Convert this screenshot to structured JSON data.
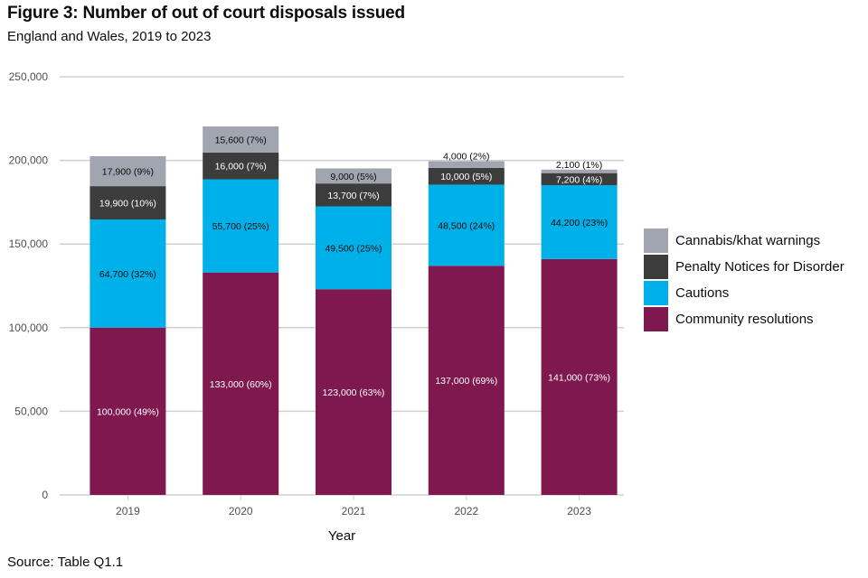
{
  "title": "Figure 3: Number of out of court disposals issued",
  "subtitle": "England and Wales, 2019 to 2023",
  "source": "Source: Table Q1.1",
  "chart_data": {
    "type": "bar",
    "stacked": true,
    "title": "Figure 3: Number of out of court disposals issued",
    "subtitle": "England and Wales, 2019 to 2023",
    "xlabel": "Year",
    "ylabel": "",
    "categories": [
      "2019",
      "2020",
      "2021",
      "2022",
      "2023"
    ],
    "ylim": [
      0,
      250000
    ],
    "yticks": [
      0,
      50000,
      100000,
      150000,
      200000,
      250000
    ],
    "ytick_labels": [
      "0",
      "50,000",
      "100,000",
      "150,000",
      "200,000",
      "250,000"
    ],
    "grid": true,
    "legend_position": "right",
    "series": [
      {
        "name": "Community resolutions",
        "color": "#7e184e",
        "label_color": "#ffffff",
        "values": [
          100000,
          133000,
          123000,
          137000,
          141000
        ],
        "labels": [
          "100,000 (49%)",
          "133,000 (60%)",
          "123,000 (63%)",
          "137,000 (69%)",
          "141,000 (73%)"
        ]
      },
      {
        "name": "Cautions",
        "color": "#00b0e8",
        "label_color": "#0b0c0c",
        "values": [
          64700,
          55700,
          49500,
          48500,
          44200
        ],
        "labels": [
          "64,700 (32%)",
          "55,700 (25%)",
          "49,500 (25%)",
          "48,500 (24%)",
          "44,200 (23%)"
        ]
      },
      {
        "name": "Penalty Notices for Disorder",
        "color": "#3c3c3c",
        "label_color": "#ffffff",
        "values": [
          19900,
          16000,
          13700,
          10000,
          7200
        ],
        "labels": [
          "19,900 (10%)",
          "16,000 (7%)",
          "13,700 (7%)",
          "10,000 (5%)",
          "7,200 (4%)"
        ]
      },
      {
        "name": "Cannabis/khat warnings",
        "color": "#a0a5b0",
        "label_color": "#0b0c0c",
        "values": [
          17900,
          15600,
          9000,
          4000,
          2100
        ],
        "labels": [
          "17,900 (9%)",
          "15,600 (7%)",
          "9,000 (5%)",
          "4,000 (2%)",
          "2,100 (1%)"
        ]
      }
    ],
    "legend_order": [
      "Cannabis/khat warnings",
      "Penalty Notices for Disorder",
      "Cautions",
      "Community resolutions"
    ]
  }
}
